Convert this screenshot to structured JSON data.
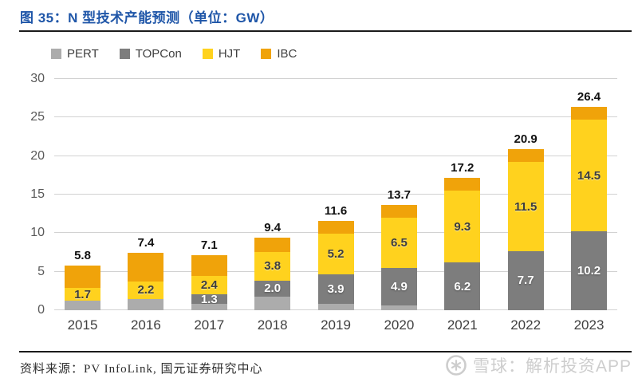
{
  "title": "图 35：N 型技术产能预测（单位：GW）",
  "chart_data": {
    "type": "bar",
    "stacked": true,
    "title": "N 型技术产能预测",
    "unit": "GW",
    "categories": [
      "2015",
      "2016",
      "2017",
      "2018",
      "2019",
      "2020",
      "2021",
      "2022",
      "2023"
    ],
    "series": [
      {
        "name": "PERT",
        "color": "#acacac",
        "label_color": "#ffffff",
        "label_style": "light",
        "values": [
          1.2,
          1.5,
          0.8,
          1.8,
          0.8,
          0.6,
          0,
          0,
          0
        ],
        "labels": [
          "",
          "",
          "",
          "",
          "",
          "",
          "",
          "",
          ""
        ]
      },
      {
        "name": "TOPCon",
        "color": "#7d7d7d",
        "label_color": "#ffffff",
        "label_style": "light",
        "values": [
          0,
          0,
          1.3,
          2.0,
          3.9,
          4.9,
          6.2,
          7.7,
          10.2
        ],
        "labels": [
          "",
          "",
          "1.3",
          "2.0",
          "3.9",
          "4.9",
          "6.2",
          "7.7",
          "10.2"
        ]
      },
      {
        "name": "HJT",
        "color": "#ffd21e",
        "label_color": "#3d3d3d",
        "label_style": "dark",
        "values": [
          1.7,
          2.2,
          2.4,
          3.8,
          5.2,
          6.5,
          9.3,
          11.5,
          14.5
        ],
        "labels": [
          "1.7",
          "2.2",
          "2.4",
          "3.8",
          "5.2",
          "6.5",
          "9.3",
          "11.5",
          "14.5"
        ]
      },
      {
        "name": "IBC",
        "color": "#f0a30a",
        "label_color": "#3d3d3d",
        "label_style": "dark",
        "values": [
          2.9,
          3.7,
          2.6,
          1.8,
          1.7,
          1.7,
          1.7,
          1.7,
          1.7
        ],
        "labels": [
          "",
          "",
          "",
          "",
          "",
          "",
          "",
          "",
          ""
        ]
      }
    ],
    "totals": [
      "5.8",
      "7.4",
      "7.1",
      "9.4",
      "11.6",
      "13.7",
      "17.2",
      "20.9",
      "26.4"
    ],
    "ylim": [
      0,
      30
    ],
    "yticks": [
      0,
      5,
      10,
      15,
      20,
      25,
      30
    ],
    "grid": true,
    "legend_position": "top-left"
  },
  "footer": {
    "source": "资料来源：PV InfoLink, 国元证券研究中心"
  },
  "watermark": {
    "text": "雪球：解析投资APP",
    "logo": "xueqiu-snowball-logo"
  }
}
